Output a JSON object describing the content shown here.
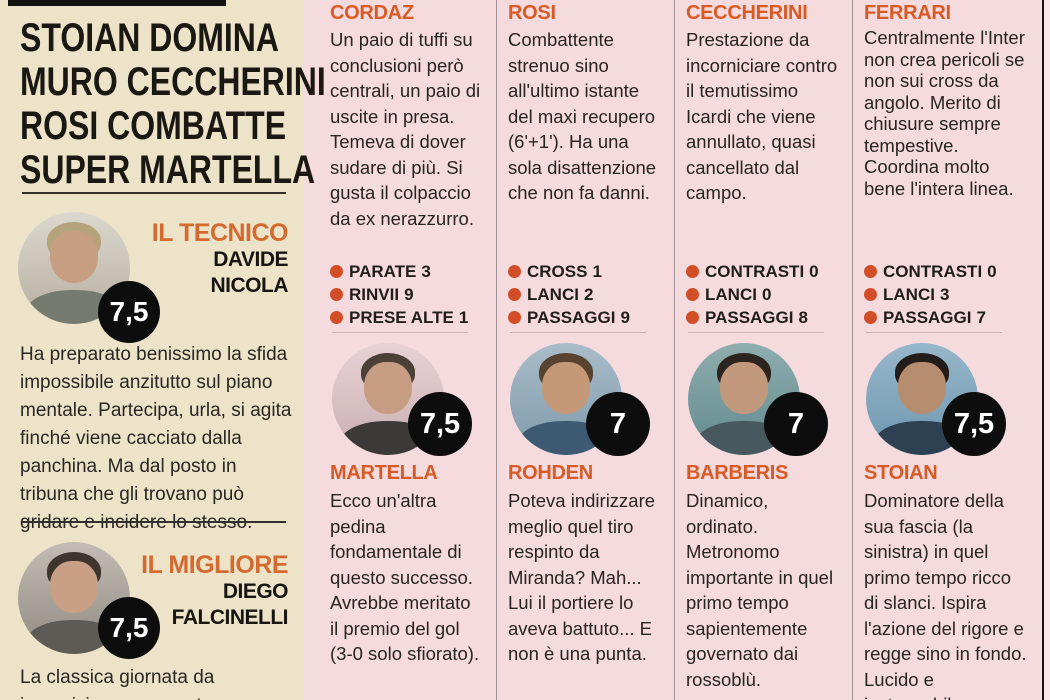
{
  "colors": {
    "beige_bg": "#EDE3C9",
    "pink_bg": "#F5DADE",
    "accent_orange": "#D85B26",
    "bullet_orange": "#D14E27",
    "badge_black": "#0D0D0D",
    "text_black": "#1B1713"
  },
  "headline": {
    "lines": [
      "STOIAN DOMINA",
      "MURO CECCHERINI",
      "ROSI COMBATTE",
      "SUPER MARTELLA"
    ]
  },
  "left_panel": {
    "sections": [
      {
        "label": "IL TECNICO",
        "name_line1": "DAVIDE",
        "name_line2": "NICOLA",
        "rating": "7,5",
        "comment": "Ha preparato benissimo la sfida impossibile anzitutto sul piano mentale. Partecipa, urla, si agita finché viene cacciato dalla panchina. Ma dal posto in tribuna che gli trovano può gridare e incidere lo stesso."
      },
      {
        "label": "IL MIGLIORE",
        "name_line1": "DIEGO",
        "name_line2": "FALCINELLI",
        "rating": "7,5",
        "comment": "La classica giornata da incorniciare per questo"
      }
    ]
  },
  "columns": [
    {
      "top_name": "CORDAZ",
      "top_comment": "Un paio di tuffi su conclusioni però centrali, un paio di uscite in presa. Temeva di dover sudare di più. Si gusta il colpaccio da ex nerazzurro.",
      "stats": [
        {
          "label": "PARATE",
          "value": "3"
        },
        {
          "label": "RINVII",
          "value": "9"
        },
        {
          "label": "PRESE ALTE",
          "value": "1"
        }
      ],
      "rating": "7,5",
      "bottom_name": "MARTELLA",
      "bottom_comment": "Ecco un'altra pedina fondamentale di questo successo. Avrebbe meritato il premio del gol (3-0 solo sfiorato)."
    },
    {
      "top_name": "ROSI",
      "top_comment": "Combattente strenuo sino all'ultimo istante del maxi recupero (6'+1'). Ha una sola disattenzione che non fa danni.",
      "stats": [
        {
          "label": "CROSS",
          "value": "1"
        },
        {
          "label": "LANCI",
          "value": "2"
        },
        {
          "label": "PASSAGGI",
          "value": "9"
        }
      ],
      "rating": "7",
      "bottom_name": "ROHDEN",
      "bottom_comment": "Poteva indirizzare meglio quel tiro respinto da Miranda? Mah... Lui il portiere lo aveva battuto... E non è una punta."
    },
    {
      "top_name": "CECCHERINI",
      "top_comment": "Prestazione da incorniciare contro il temutissimo Icardi che viene annullato, quasi cancellato dal campo.",
      "stats": [
        {
          "label": "CONTRASTI",
          "value": "0"
        },
        {
          "label": "LANCI",
          "value": "0"
        },
        {
          "label": "PASSAGGI",
          "value": "8"
        }
      ],
      "rating": "7",
      "bottom_name": "BARBERIS",
      "bottom_comment": "Dinamico, ordinato. Metronomo importante in quel primo tempo sapientemente governato dai rossoblù."
    },
    {
      "top_name": "FERRARI",
      "top_comment": "Centralmente l'Inter non crea pericoli se non sui cross da angolo. Merito di chiusure sempre tempestive. Coordina molto bene l'intera linea.",
      "stats": [
        {
          "label": "CONTRASTI",
          "value": "0"
        },
        {
          "label": "LANCI",
          "value": "3"
        },
        {
          "label": "PASSAGGI",
          "value": "7"
        }
      ],
      "rating": "7,5",
      "bottom_name": "STOIAN",
      "bottom_comment": "Dominatore della sua fascia (la sinistra) in quel primo tempo ricco di slanci. Ispira l'azione del rigore e regge sino in fondo. Lucido e instancabile."
    }
  ]
}
